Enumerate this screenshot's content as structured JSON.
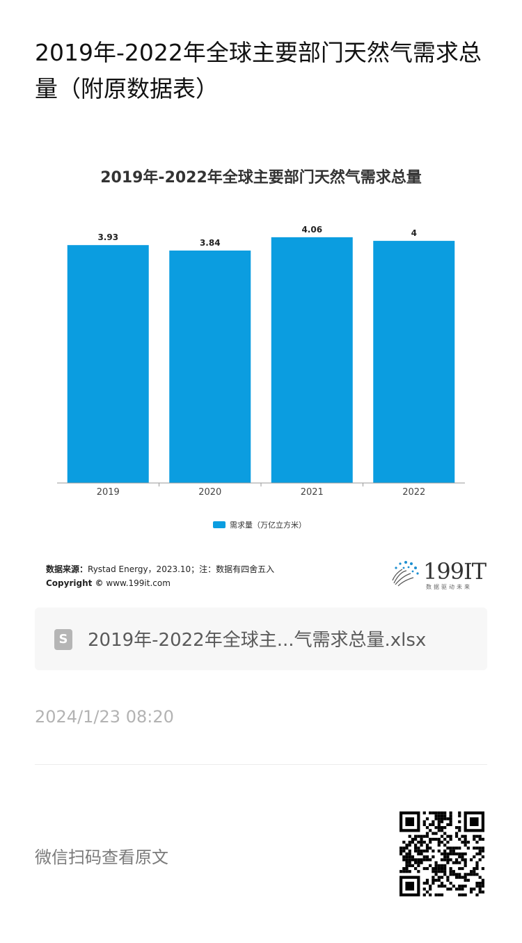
{
  "page": {
    "title": "2019年-2022年全球主要部门天然气需求总量（附原数据表）"
  },
  "chart_data": {
    "type": "bar",
    "title": "2019年-2022年全球主要部门天然气需求总量",
    "categories": [
      "2019",
      "2020",
      "2021",
      "2022"
    ],
    "series": [
      {
        "name": "需求量（万亿立方米）",
        "values": [
          3.93,
          3.84,
          4.06,
          4
        ]
      }
    ],
    "data_labels": [
      "3.93",
      "3.84",
      "4.06",
      "4"
    ],
    "ylim": [
      0,
      4.3
    ],
    "xlabel": "",
    "ylabel": "",
    "grid": false,
    "legend": "bottom",
    "bar_color": "#0b9de0"
  },
  "source": {
    "label": "数据来源：",
    "text": "Rystad Energy，2023.10；注：数据有四舍五入",
    "copyright_label": "Copyright ©",
    "copyright_text": "www.199it.com"
  },
  "logo": {
    "text": "199IT",
    "sub": "数据驱动未来",
    "icon": "dandelion-logo-icon"
  },
  "file": {
    "icon": "spreadsheet-file-icon",
    "icon_letter": "S",
    "name": "2019年-2022年全球主...气需求总量.xlsx"
  },
  "meta": {
    "timestamp": "2024/1/23 08:20"
  },
  "footer": {
    "wechat_hint": "微信扫码查看原文",
    "qr_icon": "qr-code-icon"
  }
}
